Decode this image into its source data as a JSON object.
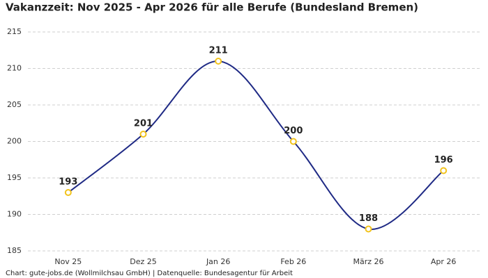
{
  "chart_data": {
    "type": "line",
    "title": "Vakanzzeit: Nov 2025 - Apr 2026 für alle Berufe (Bundesland Bremen)",
    "footer": "Chart: gute-jobs.de (Wollmilchsau GmbH) | Datenquelle: Bundesagentur für Arbeit",
    "categories": [
      "Nov 25",
      "Dez 25",
      "Jan 26",
      "Feb 26",
      "März 26",
      "Apr 26"
    ],
    "values": [
      193,
      201,
      211,
      200,
      188,
      196
    ],
    "color": "#1f2a85",
    "marker_color": "#f2c31c",
    "ylim": [
      185,
      215
    ],
    "yticks": [
      185,
      190,
      195,
      200,
      205,
      210,
      215
    ],
    "grid": true
  }
}
